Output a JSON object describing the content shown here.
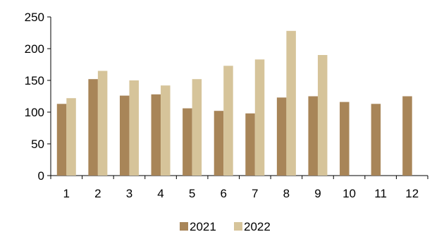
{
  "chart_data": {
    "type": "bar",
    "title": "",
    "xlabel": "",
    "ylabel": "",
    "categories": [
      "1",
      "2",
      "3",
      "4",
      "5",
      "6",
      "7",
      "8",
      "9",
      "10",
      "11",
      "12"
    ],
    "series": [
      {
        "name": "2021",
        "color": "#A88558",
        "values": [
          113,
          152,
          126,
          128,
          106,
          102,
          98,
          123,
          125,
          116,
          113,
          125
        ]
      },
      {
        "name": "2022",
        "color": "#D6C49A",
        "values": [
          122,
          165,
          150,
          142,
          152,
          173,
          183,
          228,
          190,
          null,
          null,
          null
        ]
      }
    ],
    "ylim": [
      0,
      250
    ],
    "yticks": [
      "0",
      "50",
      "100",
      "150",
      "200",
      "250"
    ],
    "grid": false,
    "legend_position": "bottom"
  }
}
